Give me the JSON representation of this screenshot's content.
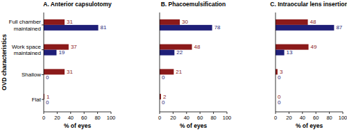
{
  "chart_data": [
    {
      "type": "bar",
      "orientation": "horizontal",
      "title": "A. Anterior capsulotomy",
      "y_label": "OVD characteristics",
      "x_label": "% of eyes",
      "categories": [
        "Full chamber maintained",
        "Work space maintained",
        "Shallow",
        "Flat"
      ],
      "series": [
        {
          "color": "#8b1a1a",
          "values": [
            31,
            37,
            31,
            1
          ]
        },
        {
          "color": "#1f1f78",
          "values": [
            81,
            19,
            0,
            0
          ]
        }
      ],
      "xlim": [
        0,
        100
      ],
      "xticks": [
        0,
        20,
        40,
        60,
        80,
        100
      ],
      "data_labels": true
    },
    {
      "type": "bar",
      "orientation": "horizontal",
      "title": "B. Phacoemulsification",
      "x_label": "% of eyes",
      "categories": [
        "Full chamber maintained",
        "Work space maintained",
        "Shallow",
        "Flat"
      ],
      "series": [
        {
          "color": "#8b1a1a",
          "values": [
            30,
            48,
            21,
            2
          ]
        },
        {
          "color": "#1f1f78",
          "values": [
            78,
            22,
            0,
            0
          ]
        }
      ],
      "xlim": [
        0,
        100
      ],
      "xticks": [
        0,
        20,
        40,
        60,
        80,
        100
      ],
      "data_labels": true,
      "tick_labels": "x"
    },
    {
      "type": "bar",
      "orientation": "horizontal",
      "title": "C. Intraocular lens insertion",
      "x_label": "% of eyes",
      "categories": [
        "Full chamber maintained",
        "Work space maintained",
        "Shallow",
        "Flat"
      ],
      "series": [
        {
          "color": "#8b1a1a",
          "values": [
            48,
            49,
            3,
            0
          ]
        },
        {
          "color": "#1f1f78",
          "values": [
            87,
            13,
            0,
            0
          ]
        }
      ],
      "xlim": [
        0,
        100
      ],
      "xticks": [
        0,
        20,
        40,
        60,
        80,
        100
      ],
      "data_labels": true,
      "tick_labels": "x"
    }
  ]
}
